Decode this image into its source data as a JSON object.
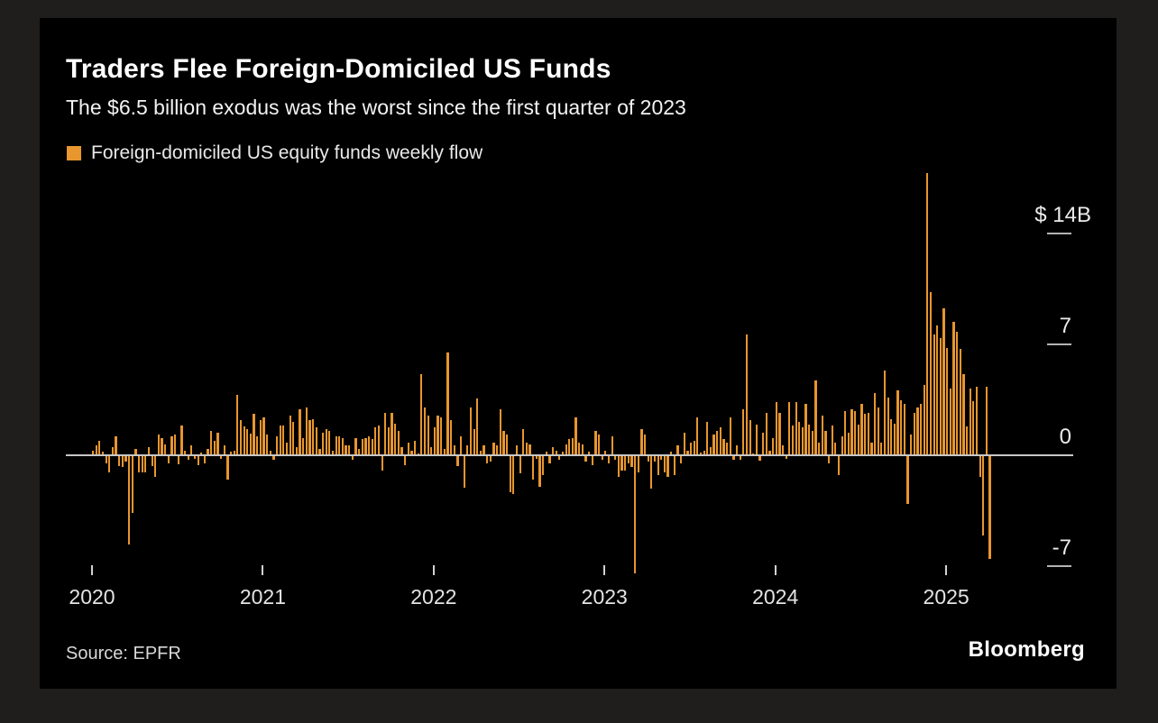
{
  "header": {
    "title": "Traders Flee Foreign-Domiciled US Funds",
    "subtitle": "The $6.5 billion exodus was the worst since the first quarter of 2023"
  },
  "legend": {
    "label": "Foreign-domiciled US equity funds weekly flow",
    "swatch_color": "#e8962e"
  },
  "footer": {
    "source": "Source: EPFR",
    "brand": "Bloomberg"
  },
  "chart_data": {
    "type": "bar",
    "title": "Traders Flee Foreign-Domiciled US Funds",
    "series_name": "Foreign-domiciled US equity funds weekly flow",
    "unit": "billions USD",
    "frequency": "weekly",
    "x_start": "2020-W1",
    "x_end": "2025-W14",
    "bar_color": "#e8962e",
    "ylim": [
      -8,
      18.5
    ],
    "grid": false,
    "legend_position": "top-left",
    "yticks": [
      {
        "label": "$ 14B",
        "value": 14
      },
      {
        "label": "7",
        "value": 7
      },
      {
        "label": "0",
        "value": 0
      },
      {
        "label": "-7",
        "value": -7
      }
    ],
    "xticks": [
      "2020",
      "2021",
      "2022",
      "2023",
      "2024",
      "2025"
    ],
    "values": [
      0.3,
      0.6,
      0.9,
      0.2,
      -0.45,
      -1.0,
      0.5,
      1.2,
      -0.6,
      -0.7,
      -0.35,
      -5.6,
      -3.6,
      0.4,
      -1.0,
      -1.0,
      -1.0,
      0.5,
      -0.6,
      -1.3,
      1.3,
      1.1,
      0.7,
      -0.45,
      1.2,
      1.3,
      -0.5,
      1.85,
      0.3,
      -0.25,
      0.6,
      -0.15,
      -0.55,
      0.15,
      -0.45,
      0.4,
      1.55,
      0.9,
      1.45,
      -0.15,
      0.6,
      -1.5,
      0.2,
      0.3,
      3.8,
      2.2,
      1.8,
      1.65,
      1.35,
      2.6,
      1.2,
      2.2,
      2.4,
      1.3,
      0.3,
      -0.2,
      1.2,
      1.85,
      1.85,
      0.8,
      2.5,
      2.1,
      0.5,
      2.9,
      1.1,
      3.0,
      2.2,
      2.3,
      1.75,
      0.4,
      1.4,
      1.65,
      1.55,
      0.3,
      1.2,
      1.2,
      1.1,
      0.6,
      0.6,
      -0.25,
      1.1,
      0.4,
      1.0,
      1.1,
      1.2,
      1.0,
      1.75,
      1.85,
      -0.9,
      2.7,
      1.75,
      2.7,
      2.0,
      1.55,
      0.5,
      -0.55,
      0.8,
      0.3,
      0.9,
      0.1,
      5.1,
      3.0,
      2.5,
      0.5,
      1.75,
      2.5,
      2.4,
      0.4,
      6.5,
      2.2,
      0.6,
      -0.6,
      1.2,
      -2.0,
      0.6,
      3.0,
      1.65,
      3.6,
      0.3,
      0.6,
      -0.45,
      -0.35,
      0.8,
      0.6,
      2.9,
      1.55,
      1.3,
      -2.3,
      -2.4,
      0.6,
      -1.1,
      1.65,
      0.8,
      0.7,
      -1.5,
      -0.15,
      -1.95,
      -1.2,
      0.2,
      -0.45,
      0.5,
      0.3,
      -0.25,
      0.2,
      0.7,
      1.0,
      1.1,
      2.4,
      0.8,
      0.7,
      -0.35,
      0.2,
      -0.55,
      1.55,
      1.3,
      -0.25,
      0.3,
      -0.45,
      1.2,
      -0.25,
      -1.3,
      -0.9,
      -0.9,
      -0.45,
      -0.7,
      -7.4,
      -1.0,
      1.65,
      1.3,
      -0.35,
      -2.05,
      -0.35,
      -1.2,
      -0.25,
      -1.0,
      -1.3,
      0.2,
      -1.2,
      0.6,
      -0.45,
      1.4,
      0.3,
      0.8,
      0.9,
      2.4,
      0.15,
      0.3,
      2.1,
      0.5,
      1.3,
      1.55,
      1.75,
      1.0,
      0.8,
      2.4,
      -0.25,
      0.6,
      -0.2,
      2.9,
      7.6,
      2.2,
      0.1,
      1.95,
      -0.3,
      1.4,
      2.7,
      0.3,
      1.1,
      3.35,
      2.7,
      0.6,
      -0.15,
      3.35,
      1.85,
      3.35,
      2.1,
      1.75,
      3.25,
      1.95,
      1.55,
      4.7,
      0.8,
      2.5,
      1.55,
      -0.45,
      1.85,
      0.8,
      -1.2,
      1.2,
      2.8,
      1.4,
      2.9,
      2.8,
      1.95,
      3.25,
      2.6,
      2.7,
      0.8,
      3.9,
      3.0,
      0.8,
      5.35,
      3.65,
      2.3,
      2.0,
      4.1,
      3.45,
      3.25,
      -3.0,
      1.3,
      2.7,
      3.0,
      3.25,
      4.45,
      17.8,
      10.3,
      7.6,
      8.2,
      7.4,
      9.3,
      6.8,
      4.2,
      8.4,
      7.8,
      6.7,
      5.1,
      1.8,
      4.2,
      3.4,
      4.35,
      -1.3,
      -5.0,
      4.3,
      -6.5
    ]
  }
}
